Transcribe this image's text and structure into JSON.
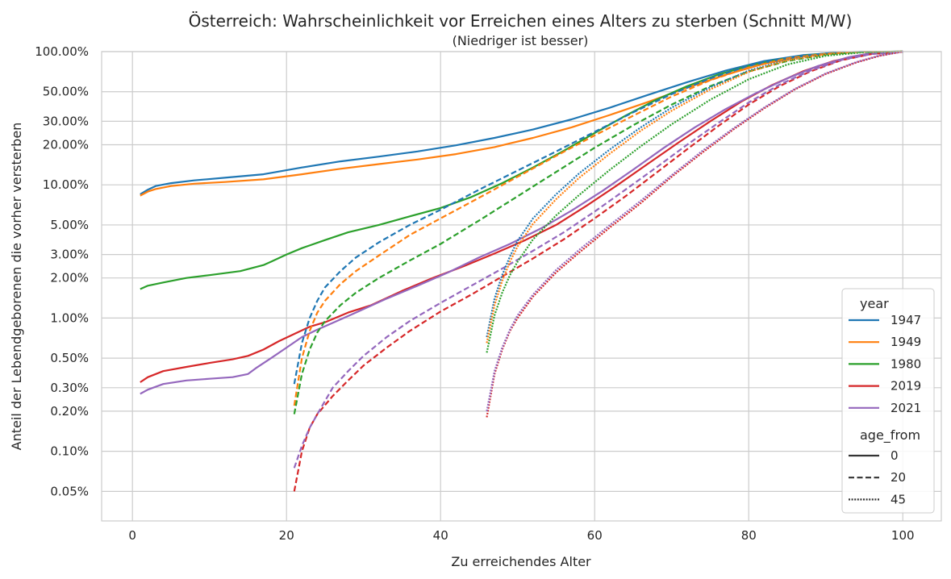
{
  "chart_data": {
    "type": "line",
    "title": "Österreich: Wahrscheinlichkeit vor Erreichen eines Alters zu sterben (Schnitt M/W)",
    "subtitle": "(Niedriger ist besser)",
    "xlabel": "Zu erreichendes Alter",
    "ylabel": "Anteil der Lebendgeborenen die vorher versterben",
    "xlim": [
      -4,
      105
    ],
    "ylim": [
      0.03,
      100
    ],
    "yscale": "log",
    "x_ticks": [
      0,
      20,
      40,
      60,
      80,
      100
    ],
    "y_ticks": [
      {
        "value": 0.05,
        "label": "0.05%"
      },
      {
        "value": 0.1,
        "label": "0.10%"
      },
      {
        "value": 0.2,
        "label": "0.20%"
      },
      {
        "value": 0.3,
        "label": "0.30%"
      },
      {
        "value": 0.5,
        "label": "0.50%"
      },
      {
        "value": 1,
        "label": "1.00%"
      },
      {
        "value": 2,
        "label": "2.00%"
      },
      {
        "value": 3,
        "label": "3.00%"
      },
      {
        "value": 5,
        "label": "5.00%"
      },
      {
        "value": 10,
        "label": "10.00%"
      },
      {
        "value": 20,
        "label": "20.00%"
      },
      {
        "value": 30,
        "label": "30.00%"
      },
      {
        "value": 50,
        "label": "50.00%"
      },
      {
        "value": 100,
        "label": "100.00%"
      }
    ],
    "grid": true,
    "legend": {
      "position": "lower-right",
      "year_title": "year",
      "years": [
        {
          "label": "1947",
          "color": "#1f77b4"
        },
        {
          "label": "1949",
          "color": "#ff7f0e"
        },
        {
          "label": "1980",
          "color": "#2ca02c"
        },
        {
          "label": "2019",
          "color": "#d62728"
        },
        {
          "label": "2021",
          "color": "#9467bd"
        }
      ],
      "age_title": "age_from",
      "ages": [
        {
          "label": "0",
          "dash": "solid"
        },
        {
          "label": "20",
          "dash": "dashed"
        },
        {
          "label": "45",
          "dash": "dotted"
        }
      ]
    },
    "series": [
      {
        "year": "1947",
        "age_from": "0",
        "color": "#1f77b4",
        "dash": "solid",
        "x": [
          1,
          2,
          3,
          5,
          8,
          12,
          17,
          22,
          27,
          32,
          37,
          42,
          47,
          52,
          57,
          62,
          67,
          72,
          77,
          82,
          87,
          92,
          95,
          100
        ],
        "y": [
          8.5,
          9.2,
          9.8,
          10.3,
          10.8,
          11.3,
          12.0,
          13.5,
          15.0,
          16.3,
          17.8,
          19.8,
          22.5,
          26.0,
          31.0,
          38.0,
          47.5,
          59.0,
          72.0,
          85.0,
          94.0,
          98.8,
          99.7,
          100
        ]
      },
      {
        "year": "1949",
        "age_from": "0",
        "color": "#ff7f0e",
        "dash": "solid",
        "x": [
          1,
          2,
          3,
          5,
          8,
          12,
          17,
          22,
          27,
          32,
          37,
          42,
          47,
          52,
          57,
          62,
          67,
          72,
          77,
          82,
          87,
          92,
          95,
          100
        ],
        "y": [
          8.3,
          8.9,
          9.3,
          9.8,
          10.2,
          10.5,
          11.0,
          12.0,
          13.2,
          14.3,
          15.5,
          17.0,
          19.2,
          22.5,
          27.0,
          33.5,
          42.0,
          53.5,
          67.0,
          81.0,
          92.0,
          98.3,
          99.6,
          100
        ]
      },
      {
        "year": "1980",
        "age_from": "0",
        "color": "#2ca02c",
        "dash": "solid",
        "x": [
          1,
          2,
          4,
          7,
          10,
          14,
          17,
          18,
          20,
          22,
          25,
          28,
          32,
          36,
          40,
          44,
          48,
          52,
          56,
          60,
          64,
          68,
          72,
          76,
          80,
          84,
          88,
          92,
          95,
          100
        ],
        "y": [
          1.65,
          1.75,
          1.85,
          2.0,
          2.1,
          2.25,
          2.5,
          2.65,
          3.0,
          3.35,
          3.85,
          4.4,
          5.0,
          5.8,
          6.7,
          8.1,
          10.3,
          13.5,
          18.0,
          24.5,
          33.0,
          43.5,
          55.0,
          67.0,
          78.0,
          87.5,
          94.5,
          98.5,
          99.6,
          100
        ]
      },
      {
        "year": "2019",
        "age_from": "0",
        "color": "#d62728",
        "dash": "solid",
        "x": [
          1,
          2,
          4,
          7,
          10,
          13,
          15,
          17,
          19,
          21,
          23,
          25,
          28,
          31,
          35,
          39,
          43,
          47,
          51,
          55,
          59,
          63,
          67,
          71,
          75,
          79,
          83,
          87,
          91,
          95,
          100
        ],
        "y": [
          0.33,
          0.36,
          0.4,
          0.43,
          0.46,
          0.49,
          0.52,
          0.58,
          0.67,
          0.76,
          0.86,
          0.93,
          1.1,
          1.25,
          1.6,
          2.0,
          2.45,
          3.05,
          3.85,
          5.0,
          7.0,
          10.0,
          14.5,
          21.0,
          30.0,
          42.0,
          56.0,
          71.0,
          85.0,
          95.0,
          100
        ]
      },
      {
        "year": "2021",
        "age_from": "0",
        "color": "#9467bd",
        "dash": "solid",
        "x": [
          1,
          2,
          4,
          7,
          10,
          13,
          15,
          16,
          18,
          20,
          22,
          24,
          26,
          29,
          33,
          37,
          41,
          45,
          49,
          53,
          57,
          61,
          65,
          69,
          73,
          77,
          81,
          85,
          89,
          93,
          96,
          100
        ],
        "y": [
          0.27,
          0.29,
          0.32,
          0.34,
          0.35,
          0.36,
          0.38,
          0.42,
          0.5,
          0.6,
          0.72,
          0.82,
          0.92,
          1.1,
          1.4,
          1.75,
          2.2,
          2.85,
          3.6,
          4.7,
          6.4,
          9.0,
          13.0,
          19.0,
          27.0,
          37.0,
          49.0,
          63.0,
          78.0,
          91.0,
          97.5,
          100
        ]
      },
      {
        "year": "1947",
        "age_from": "20",
        "color": "#1f77b4",
        "dash": "dashed",
        "x": [
          21,
          22,
          23,
          24,
          25,
          27,
          29,
          32,
          36,
          40,
          45,
          50,
          55,
          60,
          65,
          70,
          75,
          80,
          85,
          90,
          94,
          100
        ],
        "y": [
          0.32,
          0.65,
          1.0,
          1.35,
          1.7,
          2.25,
          2.85,
          3.7,
          5.0,
          6.5,
          9.2,
          12.8,
          17.8,
          25.0,
          35.0,
          48.0,
          63.0,
          78.0,
          90.0,
          97.0,
          99.5,
          100
        ]
      },
      {
        "year": "1949",
        "age_from": "20",
        "color": "#ff7f0e",
        "dash": "dashed",
        "x": [
          21,
          22,
          23,
          24,
          25,
          27,
          29,
          32,
          36,
          40,
          45,
          50,
          55,
          60,
          65,
          70,
          75,
          80,
          85,
          90,
          94,
          100
        ],
        "y": [
          0.22,
          0.5,
          0.8,
          1.1,
          1.35,
          1.8,
          2.25,
          2.95,
          4.2,
          5.6,
          8.0,
          11.5,
          16.5,
          23.5,
          33.0,
          46.0,
          61.0,
          76.0,
          89.0,
          96.5,
          99.3,
          100
        ]
      },
      {
        "year": "1980",
        "age_from": "20",
        "color": "#2ca02c",
        "dash": "dashed",
        "x": [
          21,
          22,
          23,
          24,
          25,
          27,
          29,
          32,
          36,
          40,
          45,
          50,
          55,
          60,
          65,
          70,
          75,
          80,
          85,
          90,
          94,
          100
        ],
        "y": [
          0.19,
          0.38,
          0.58,
          0.78,
          0.95,
          1.25,
          1.55,
          2.0,
          2.7,
          3.6,
          5.4,
          8.2,
          12.5,
          19.0,
          28.0,
          40.0,
          55.0,
          71.0,
          85.0,
          95.0,
          99.0,
          100
        ]
      },
      {
        "year": "2019",
        "age_from": "20",
        "color": "#d62728",
        "dash": "dashed",
        "x": [
          21,
          22,
          23,
          24,
          26,
          28,
          30,
          33,
          36,
          40,
          44,
          48,
          52,
          56,
          60,
          64,
          68,
          72,
          76,
          80,
          84,
          88,
          92,
          96,
          100
        ],
        "y": [
          0.05,
          0.1,
          0.15,
          0.19,
          0.26,
          0.34,
          0.44,
          0.6,
          0.8,
          1.12,
          1.5,
          2.05,
          2.8,
          3.9,
          5.6,
          8.2,
          12.3,
          18.5,
          27.5,
          40.0,
          55.0,
          71.0,
          86.0,
          96.0,
          100
        ]
      },
      {
        "year": "2021",
        "age_from": "20",
        "color": "#9467bd",
        "dash": "dashed",
        "x": [
          21,
          22,
          23,
          24,
          26,
          28,
          30,
          33,
          36,
          40,
          44,
          48,
          52,
          56,
          60,
          64,
          68,
          72,
          76,
          80,
          84,
          88,
          92,
          96,
          100
        ],
        "y": [
          0.075,
          0.11,
          0.15,
          0.19,
          0.3,
          0.4,
          0.52,
          0.72,
          0.95,
          1.3,
          1.75,
          2.35,
          3.2,
          4.4,
          6.3,
          9.2,
          13.5,
          20.0,
          29.0,
          41.5,
          56.5,
          72.0,
          86.5,
          96.0,
          100
        ]
      },
      {
        "year": "1947",
        "age_from": "45",
        "color": "#1f77b4",
        "dash": "dotted",
        "x": [
          46,
          47,
          48,
          49,
          50,
          52,
          55,
          58,
          62,
          66,
          70,
          75,
          80,
          85,
          90,
          95,
          100
        ],
        "y": [
          0.72,
          1.4,
          2.1,
          2.9,
          3.8,
          5.6,
          8.5,
          12.2,
          18.5,
          27.0,
          38.0,
          54.0,
          72.0,
          87.0,
          96.0,
          99.5,
          100
        ]
      },
      {
        "year": "1949",
        "age_from": "45",
        "color": "#ff7f0e",
        "dash": "dotted",
        "x": [
          46,
          47,
          48,
          49,
          50,
          52,
          55,
          58,
          62,
          66,
          70,
          75,
          80,
          85,
          90,
          95,
          100
        ],
        "y": [
          0.65,
          1.25,
          1.9,
          2.65,
          3.45,
          5.1,
          7.8,
          11.3,
          17.2,
          25.5,
          36.0,
          52.0,
          70.5,
          86.0,
          95.5,
          99.4,
          100
        ]
      },
      {
        "year": "1980",
        "age_from": "45",
        "color": "#2ca02c",
        "dash": "dotted",
        "x": [
          46,
          47,
          48,
          49,
          50,
          52,
          55,
          58,
          62,
          66,
          70,
          75,
          80,
          85,
          90,
          95,
          100
        ],
        "y": [
          0.55,
          1.05,
          1.55,
          2.1,
          2.65,
          3.9,
          5.9,
          8.4,
          13.0,
          19.5,
          28.5,
          43.5,
          62.0,
          80.0,
          93.0,
          99.0,
          100
        ]
      },
      {
        "year": "2019",
        "age_from": "45",
        "color": "#d62728",
        "dash": "dotted",
        "x": [
          46,
          47,
          48,
          49,
          50,
          52,
          55,
          58,
          62,
          66,
          70,
          74,
          78,
          82,
          86,
          90,
          94,
          97,
          100
        ],
        "y": [
          0.18,
          0.38,
          0.58,
          0.8,
          1.0,
          1.45,
          2.2,
          3.1,
          4.8,
          7.3,
          11.5,
          17.5,
          26.0,
          37.5,
          52.0,
          68.0,
          83.0,
          93.0,
          100
        ]
      },
      {
        "year": "2021",
        "age_from": "45",
        "color": "#9467bd",
        "dash": "dotted",
        "x": [
          46,
          47,
          48,
          49,
          50,
          52,
          55,
          58,
          62,
          66,
          70,
          74,
          78,
          82,
          86,
          90,
          94,
          97,
          100
        ],
        "y": [
          0.2,
          0.4,
          0.6,
          0.82,
          1.05,
          1.5,
          2.3,
          3.25,
          5.0,
          7.6,
          11.8,
          18.0,
          26.5,
          38.0,
          52.5,
          68.5,
          83.5,
          93.5,
          100
        ]
      }
    ]
  }
}
